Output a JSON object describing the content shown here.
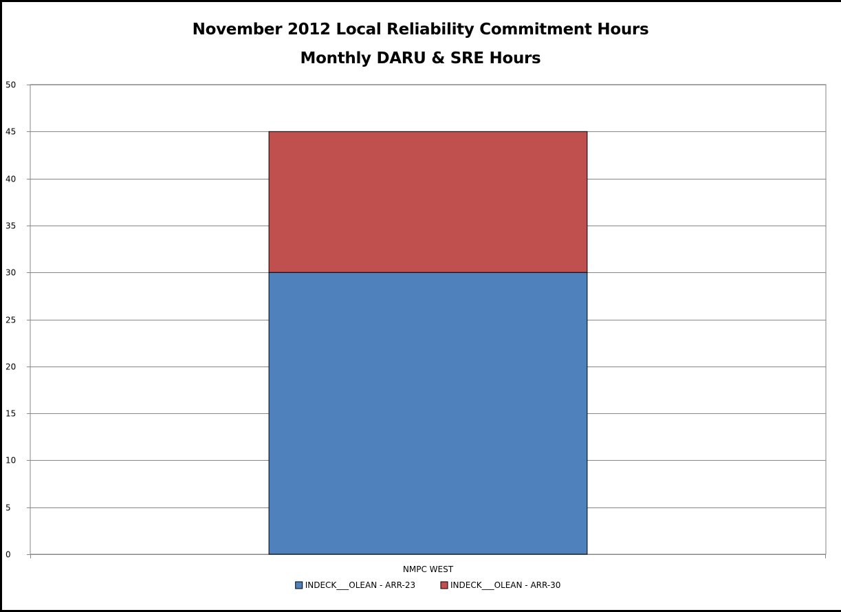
{
  "chart_data": {
    "type": "bar",
    "stacked": true,
    "title": "November 2012 Local Reliability Commitment Hours",
    "subtitle": "Monthly DARU & SRE Hours",
    "categories": [
      "NMPC WEST"
    ],
    "series": [
      {
        "name": "INDECK___OLEAN - ARR-23",
        "values": [
          30
        ],
        "color": "#4F81BD"
      },
      {
        "name": "INDECK___OLEAN - ARR-30",
        "values": [
          15
        ],
        "color": "#C0504D"
      }
    ],
    "xlabel": "",
    "ylabel": "",
    "ylim": [
      0,
      50
    ],
    "yticks": [
      0,
      5,
      10,
      15,
      20,
      25,
      30,
      35,
      40,
      45,
      50
    ],
    "grid": true,
    "legend": "bottom"
  }
}
